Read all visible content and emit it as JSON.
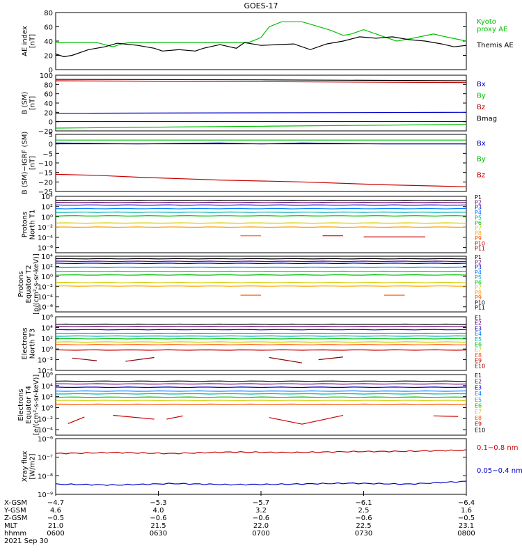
{
  "title": "GOES-17",
  "colors": {
    "black": "#000000",
    "green": "#00c000",
    "blue": "#0000c8",
    "red": "#c80000",
    "crimson": "#c00000"
  },
  "chart_data": [
    {
      "type": "line",
      "panel": "ae",
      "ylabel": "AE index\n[nT]",
      "ylim": [
        0,
        80
      ],
      "ticks": [
        "0",
        "20",
        "40",
        "60",
        "80"
      ],
      "tick_values": [
        0,
        20,
        40,
        60,
        80
      ],
      "series": [
        {
          "name": "Kyoto\nproxy AE",
          "color": "#00c000",
          "x": [
            0,
            0.1,
            0.14,
            0.16,
            0.18,
            0.25,
            0.47,
            0.5,
            0.52,
            0.55,
            0.6,
            0.63,
            0.67,
            0.7,
            0.72,
            0.75,
            0.78,
            0.83,
            0.87,
            0.92,
            0.95,
            1
          ],
          "values": [
            38,
            38,
            32,
            36,
            38,
            38,
            38,
            45,
            60,
            67,
            67,
            62,
            55,
            48,
            50,
            56,
            50,
            40,
            44,
            50,
            46,
            40
          ]
        },
        {
          "name": "Themis AE",
          "color": "#000000",
          "x": [
            0,
            0.02,
            0.04,
            0.08,
            0.12,
            0.15,
            0.2,
            0.24,
            0.26,
            0.3,
            0.34,
            0.36,
            0.4,
            0.44,
            0.46,
            0.5,
            0.54,
            0.58,
            0.62,
            0.66,
            0.7,
            0.74,
            0.78,
            0.82,
            0.86,
            0.9,
            0.94,
            0.97,
            1
          ],
          "values": [
            22,
            18,
            20,
            28,
            32,
            37,
            34,
            30,
            26,
            28,
            26,
            30,
            35,
            30,
            38,
            34,
            35,
            36,
            28,
            36,
            40,
            46,
            44,
            46,
            42,
            40,
            36,
            32,
            34
          ]
        }
      ]
    },
    {
      "type": "line",
      "panel": "bsm",
      "ylabel": "B (SM)\n[nT]",
      "ylim": [
        -20,
        100
      ],
      "ticks": [
        "100",
        "80",
        "60",
        "40",
        "20",
        "0",
        "−20"
      ],
      "tick_values": [
        100,
        80,
        60,
        40,
        20,
        0,
        -20
      ],
      "series": [
        {
          "name": "Bx",
          "color": "#0000c8",
          "x": [
            0,
            0.5,
            1
          ],
          "values": [
            18,
            19,
            20
          ]
        },
        {
          "name": "By",
          "color": "#00c000",
          "x": [
            0,
            0.5,
            1
          ],
          "values": [
            -14,
            -10,
            -6
          ]
        },
        {
          "name": "Bz",
          "color": "#c80000",
          "x": [
            0,
            0.5,
            1
          ],
          "values": [
            88,
            86,
            84
          ]
        },
        {
          "name": "Bmag",
          "color": "#000000",
          "x": [
            0,
            0.5,
            1
          ],
          "values": [
            91,
            90,
            88
          ]
        }
      ]
    },
    {
      "type": "line",
      "panel": "bigrf",
      "ylabel": "B (SM)−IGRF (SM)\n[nT]",
      "ylim": [
        -25,
        5
      ],
      "ticks": [
        "5",
        "0",
        "−5",
        "−10",
        "−15",
        "−20",
        "−25"
      ],
      "tick_values": [
        5,
        0,
        -5,
        -10,
        -15,
        -20,
        -25
      ],
      "series": [
        {
          "name": "Bx",
          "color": "#0000c8",
          "x": [
            0,
            0.2,
            0.4,
            0.5,
            0.6,
            0.8,
            1
          ],
          "values": [
            0.5,
            0,
            0.5,
            0,
            0.5,
            0,
            0
          ]
        },
        {
          "name": "By",
          "color": "#00c000",
          "x": [
            0,
            1
          ],
          "values": [
            2,
            2
          ]
        },
        {
          "name": "Bz",
          "color": "#c80000",
          "x": [
            0,
            0.1,
            0.2,
            0.4,
            0.6,
            0.8,
            1
          ],
          "values": [
            -16,
            -16.5,
            -17.5,
            -19,
            -20,
            -21.5,
            -22.5
          ]
        }
      ]
    },
    {
      "type": "line",
      "panel": "pn",
      "log": true,
      "ylabel": "Protons\nNorth T1",
      "ylim": [
        -7,
        4
      ],
      "ticks": [
        "10⁴",
        "10²",
        "10⁰",
        "10⁻²",
        "10⁻⁴",
        "10⁻⁶"
      ],
      "tick_values": [
        4,
        2,
        0,
        -2,
        -4,
        -6
      ],
      "legend": [
        "P1",
        "P2",
        "P3",
        "P4",
        "P5",
        "P6",
        "P7",
        "P8",
        "P9",
        "P10",
        "P11"
      ],
      "series": [
        {
          "name": "P1",
          "color": "#000000",
          "values": [
            3.2
          ]
        },
        {
          "name": "P2",
          "color": "#6e0078",
          "values": [
            2.8
          ]
        },
        {
          "name": "P3",
          "color": "#0000c8",
          "values": [
            2.3
          ]
        },
        {
          "name": "P4",
          "color": "#0080ff",
          "values": [
            1.6
          ]
        },
        {
          "name": "P5",
          "color": "#00b0b0",
          "values": [
            0.9
          ]
        },
        {
          "name": "P6",
          "color": "#00c000",
          "values": [
            0.2
          ]
        },
        {
          "name": "P7",
          "color": "#d0d000",
          "values": [
            -1.2
          ]
        },
        {
          "name": "P8",
          "color": "#ffa000",
          "values": [
            -2.0
          ]
        },
        {
          "name": "P9",
          "color": "#ff5000",
          "segments": [
            [
              0.45,
              0.5,
              -3.7
            ]
          ]
        },
        {
          "name": "P10",
          "color": "#c80000",
          "segments": [
            [
              0.65,
              0.7,
              -3.7
            ],
            [
              0.75,
              0.9,
              -3.9
            ]
          ]
        },
        {
          "name": "P11",
          "color": "#8b0000",
          "values": []
        }
      ]
    },
    {
      "type": "line",
      "panel": "pe",
      "log": true,
      "ylabel": "Protons\nEquator T2\n[p/(cm²-s-sr-keV)]",
      "ylim": [
        -7,
        4
      ],
      "ticks": [
        "10⁴",
        "10²",
        "10⁰",
        "10⁻²",
        "10⁻⁴",
        "10⁻⁶"
      ],
      "tick_values": [
        4,
        2,
        0,
        -2,
        -4,
        -6
      ],
      "legend": [
        "P1",
        "P2",
        "P3",
        "P4",
        "P5",
        "P6",
        "P7",
        "P8",
        "P9",
        "P10",
        "P11"
      ],
      "series": [
        {
          "name": "P1",
          "color": "#000000",
          "values": [
            3.5
          ]
        },
        {
          "name": "P2",
          "color": "#6e0078",
          "values": [
            3.0
          ]
        },
        {
          "name": "P3",
          "color": "#0000c8",
          "values": [
            2.6
          ]
        },
        {
          "name": "P4",
          "color": "#0080ff",
          "values": [
            1.8
          ]
        },
        {
          "name": "P5",
          "color": "#00b0b0",
          "values": [
            1.0
          ]
        },
        {
          "name": "P6",
          "color": "#00c000",
          "values": [
            0.3
          ]
        },
        {
          "name": "P7",
          "color": "#d0d000",
          "values": [
            -1.2
          ]
        },
        {
          "name": "P8",
          "color": "#ffa000",
          "values": [
            -1.9
          ]
        },
        {
          "name": "P9",
          "color": "#ff5000",
          "segments": [
            [
              0.45,
              0.5,
              -3.7
            ],
            [
              0.8,
              0.85,
              -3.7
            ]
          ]
        }
      ]
    },
    {
      "type": "line",
      "panel": "en",
      "log": true,
      "ylabel": "Electrons\nNorth T3",
      "ylim": [
        -4,
        6
      ],
      "ticks": [
        "10⁶",
        "10⁴",
        "10²",
        "10⁰",
        "10⁻²",
        "10⁻⁴"
      ],
      "tick_values": [
        6,
        4,
        2,
        0,
        -2,
        -4
      ],
      "legend": [
        "E1",
        "E2",
        "E3",
        "E4",
        "E5",
        "E6",
        "E7",
        "E8",
        "E9",
        "E10"
      ],
      "series": [
        {
          "name": "E1",
          "color": "#000000",
          "values": [
            4.6
          ]
        },
        {
          "name": "E2",
          "color": "#6e0078",
          "values": [
            4.2
          ]
        },
        {
          "name": "E3",
          "color": "#0000c8",
          "values": [
            3.6
          ]
        },
        {
          "name": "E4",
          "color": "#0080ff",
          "values": [
            2.9
          ]
        },
        {
          "name": "E5",
          "color": "#00b0b0",
          "values": [
            2.4
          ]
        },
        {
          "name": "E6",
          "color": "#00c000",
          "values": [
            1.9
          ]
        },
        {
          "name": "E7",
          "color": "#d0d000",
          "values": [
            1.3
          ]
        },
        {
          "name": "E8",
          "color": "#ff5000",
          "values": [
            0.8
          ]
        },
        {
          "name": "E9",
          "color": "#c80000",
          "values": [
            -0.2
          ]
        },
        {
          "name": "E10",
          "color": "#8b0000",
          "segments": [
            [
              0.04,
              0.1,
              -1.7,
              -2.2
            ],
            [
              0.17,
              0.24,
              -2.3,
              -1.6
            ],
            [
              0.52,
              0.6,
              -1.6,
              -2.6
            ],
            [
              0.64,
              0.7,
              -2.0,
              -1.5
            ]
          ]
        }
      ]
    },
    {
      "type": "line",
      "panel": "ee",
      "log": true,
      "ylabel": "Electrons\nEquator T4\n[e/(cm²-s-sr-keV)]",
      "ylim": [
        -5,
        6
      ],
      "ticks": [
        "10⁶",
        "10⁴",
        "10²",
        "10⁰",
        "10⁻²",
        "10⁻⁴"
      ],
      "tick_values": [
        6,
        4,
        2,
        0,
        -2,
        -4
      ],
      "legend": [
        "E1",
        "E2",
        "E3",
        "E4",
        "E5",
        "E6",
        "E7",
        "E8",
        "E9",
        "E10"
      ],
      "series": [
        {
          "name": "E1",
          "color": "#000000",
          "values": [
            4.8
          ]
        },
        {
          "name": "E2",
          "color": "#6e0078",
          "values": [
            4.3
          ]
        },
        {
          "name": "E3",
          "color": "#0000c8",
          "values": [
            3.7
          ]
        },
        {
          "name": "E4",
          "color": "#0080ff",
          "values": [
            3.0
          ]
        },
        {
          "name": "E5",
          "color": "#00b0b0",
          "values": [
            2.5
          ]
        },
        {
          "name": "E6",
          "color": "#00c000",
          "values": [
            1.9
          ]
        },
        {
          "name": "E7",
          "color": "#d0d000",
          "values": [
            1.3
          ]
        },
        {
          "name": "E8",
          "color": "#ff5000",
          "values": [
            0.6
          ]
        },
        {
          "name": "E9",
          "color": "#c80000",
          "segments": [
            [
              0.03,
              0.07,
              -2.9,
              -1.7
            ],
            [
              0.14,
              0.24,
              -1.4,
              -2.1
            ],
            [
              0.27,
              0.31,
              -2.1,
              -1.5
            ],
            [
              0.52,
              0.6,
              -1.8,
              -3.0
            ],
            [
              0.6,
              0.7,
              -3.0,
              -1.4
            ],
            [
              0.92,
              0.98,
              -1.5,
              -1.6
            ]
          ]
        }
      ]
    },
    {
      "type": "line",
      "panel": "xray",
      "log": true,
      "ylabel": "Xray flux\n[W/m2]",
      "ylim": [
        -9,
        -6
      ],
      "ticks": [
        "10⁻⁶",
        "10⁻⁷",
        "10⁻⁸",
        "10⁻⁹"
      ],
      "tick_values": [
        -6,
        -7,
        -8,
        -9
      ],
      "series": [
        {
          "name": "0.1−0.8 nm",
          "color": "#c80000",
          "values": [
            -6.8,
            -6.75,
            -6.8,
            -6.72,
            -6.75,
            -6.7,
            -6.68,
            -6.62
          ]
        },
        {
          "name": "0.05−0.4 nm",
          "color": "#0000c8",
          "values": [
            -8.45,
            -8.5,
            -8.42,
            -8.48,
            -8.45,
            -8.4,
            -8.45,
            -8.3
          ]
        }
      ]
    }
  ],
  "xaxis": {
    "rows": [
      {
        "label": "X-GSM",
        "values": [
          "−4.7",
          "−5.3",
          "−5.7",
          "−6.1",
          "−6.4"
        ]
      },
      {
        "label": "Y-GSM",
        "values": [
          "4.6",
          "4.0",
          "3.2",
          "2.5",
          "1.6"
        ]
      },
      {
        "label": "Z-GSM",
        "values": [
          "−0.5",
          "−0.6",
          "−0.6",
          "−0.6",
          "−0.5"
        ]
      },
      {
        "label": "MLT",
        "values": [
          "21.0",
          "21.5",
          "22.0",
          "22.5",
          "23.1"
        ]
      },
      {
        "label": "hhmm",
        "values": [
          "0600",
          "0630",
          "0700",
          "0730",
          "0800"
        ]
      }
    ],
    "date": "2021 Sep 30"
  }
}
